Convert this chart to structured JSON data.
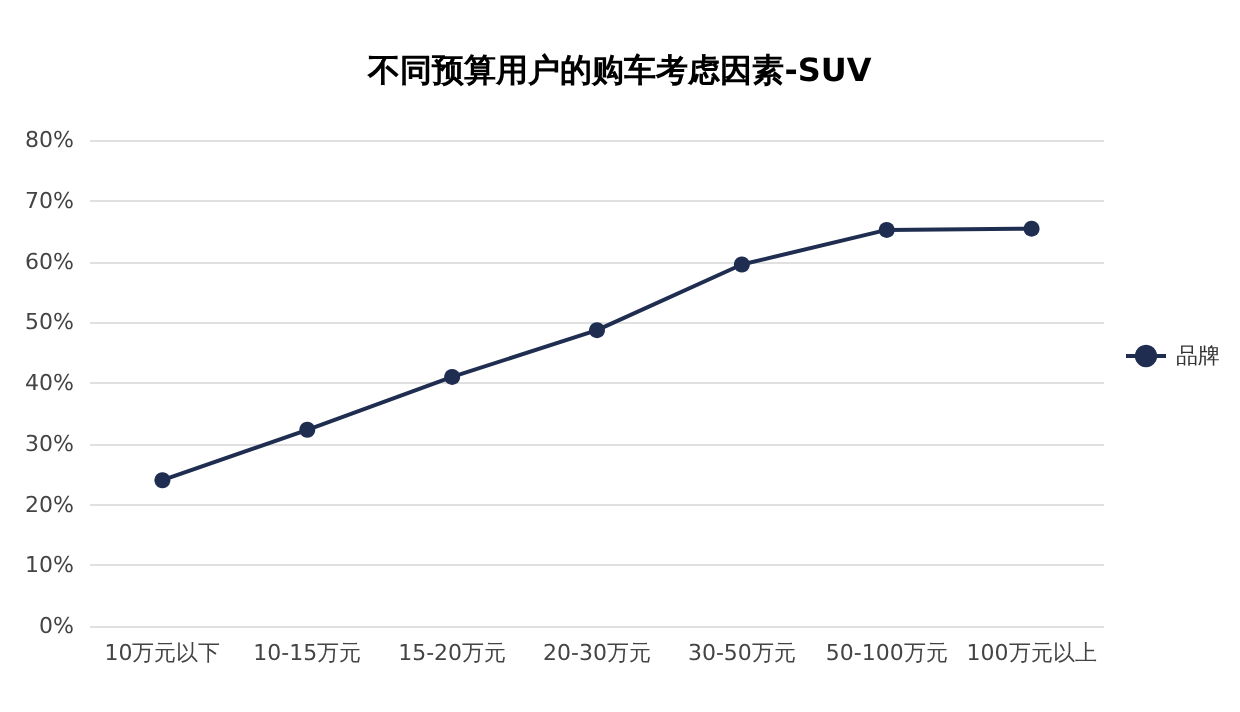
{
  "chart_data": {
    "type": "line",
    "title": "不同预算用户的购车考虑因素-SUV",
    "categories": [
      "10万元以下",
      "10-15万元",
      "15-20万元",
      "20-30万元",
      "30-50万元",
      "50-100万元",
      "100万元以上"
    ],
    "series": [
      {
        "name": "品牌",
        "color": "#1f2d50",
        "values": [
          24,
          32.3,
          41,
          48.7,
          59.5,
          65.2,
          65.4
        ]
      }
    ],
    "ylim": [
      0,
      80
    ],
    "yticks": [
      {
        "value": 0,
        "label": "0%"
      },
      {
        "value": 10,
        "label": "10%"
      },
      {
        "value": 20,
        "label": "20%"
      },
      {
        "value": 30,
        "label": "30%"
      },
      {
        "value": 40,
        "label": "40%"
      },
      {
        "value": 50,
        "label": "50%"
      },
      {
        "value": 60,
        "label": "60%"
      },
      {
        "value": 70,
        "label": "70%"
      },
      {
        "value": 80,
        "label": "80%"
      }
    ],
    "grid": "y",
    "legend": "right",
    "marker": "circle",
    "line_style": "solid"
  }
}
